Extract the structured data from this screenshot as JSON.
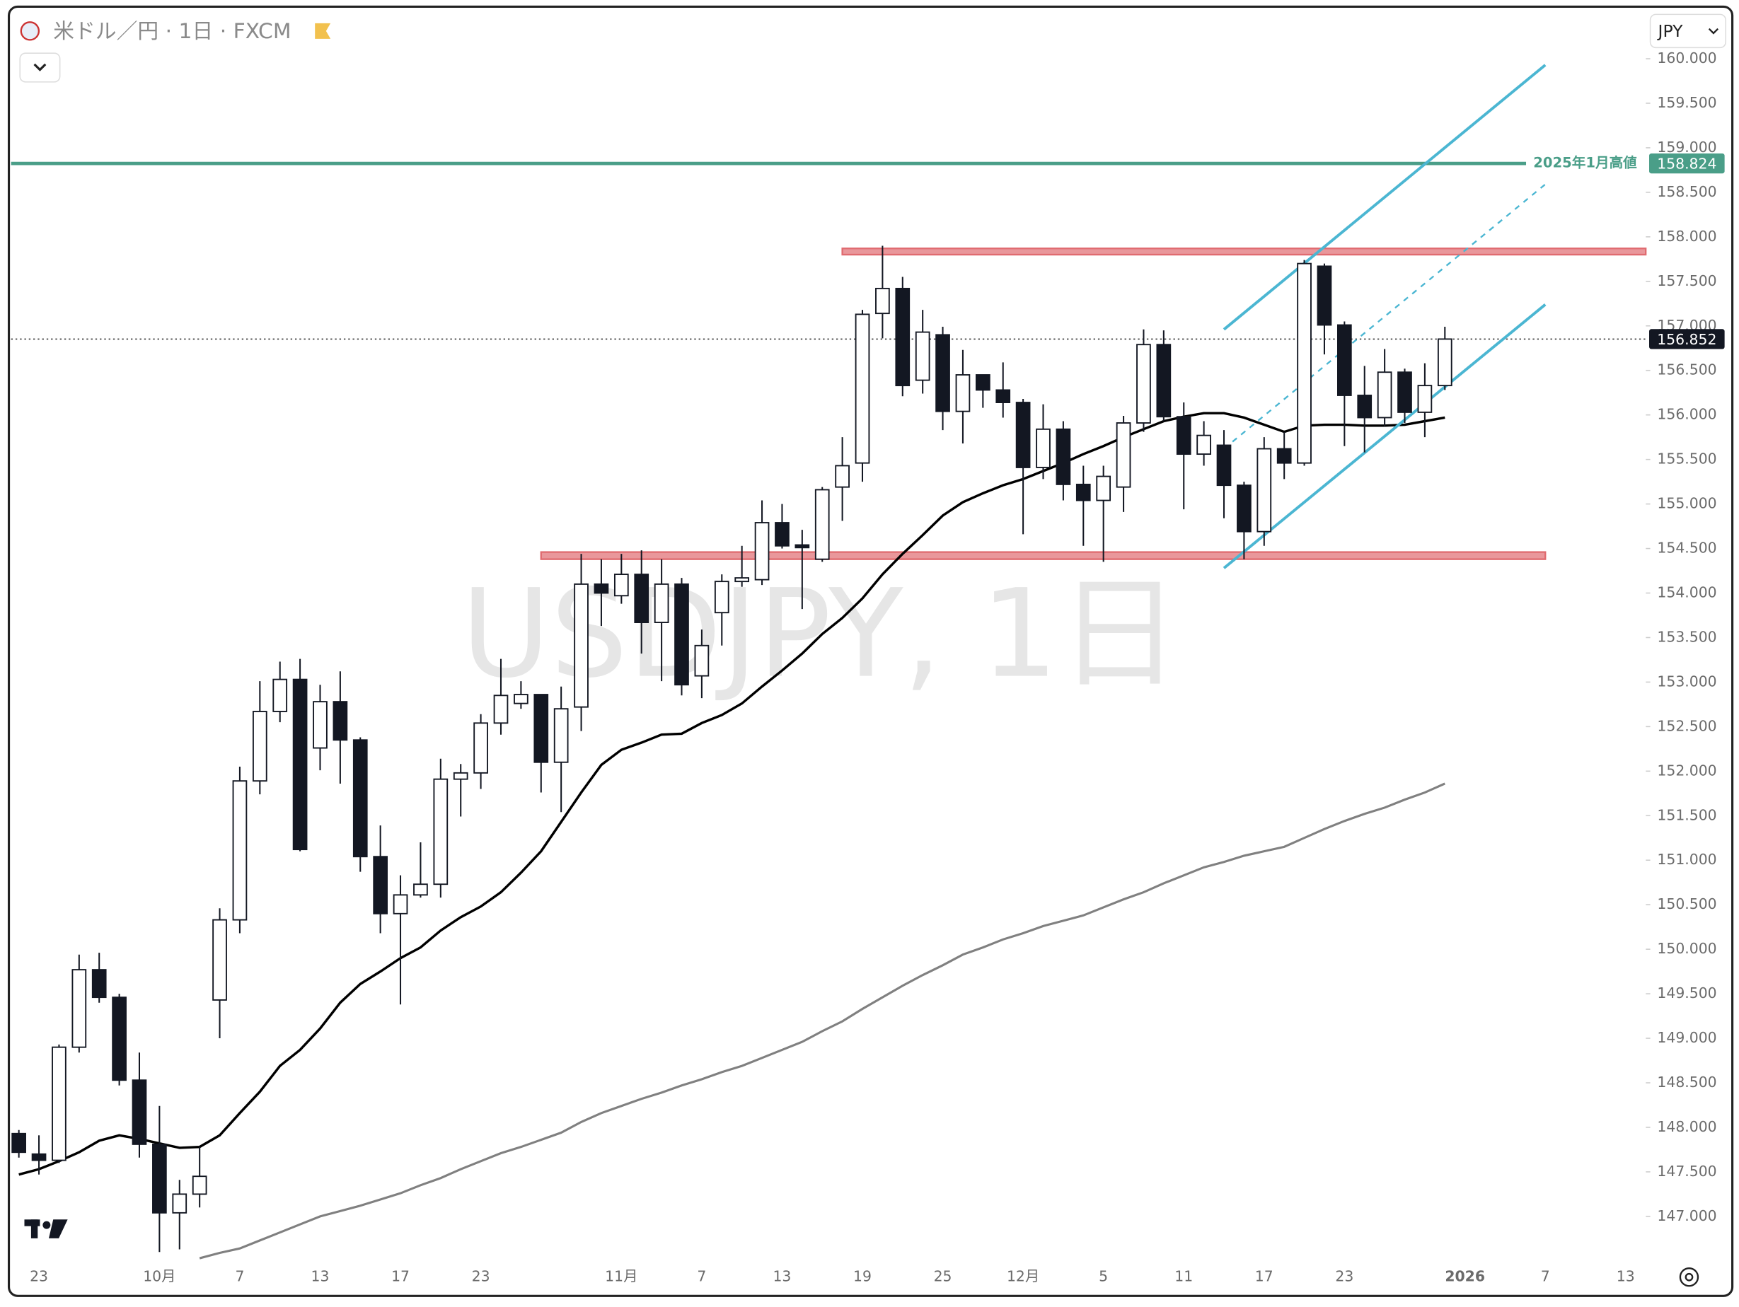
{
  "header": {
    "symbol": "米ドル／円 · 1日 · FXCM",
    "currency": "JPY"
  },
  "chart_data": {
    "type": "candlestick",
    "watermark": "USDJPY, 1日",
    "categories": [
      null,
      "23",
      null,
      null,
      null,
      null,
      null,
      "10月",
      null,
      null,
      null,
      "7",
      null,
      null,
      null,
      "13",
      null,
      null,
      null,
      "17",
      null,
      null,
      null,
      "23",
      null,
      null,
      null,
      null,
      null,
      null,
      "11月",
      null,
      null,
      null,
      "7",
      null,
      null,
      null,
      "13",
      null,
      null,
      null,
      "19",
      null,
      null,
      null,
      "25",
      null,
      null,
      null,
      "12月",
      null,
      null,
      null,
      "5",
      null,
      null,
      null,
      "11",
      null,
      null,
      null,
      "17",
      null,
      null,
      null,
      "23",
      null,
      null,
      null,
      null,
      null,
      "2026",
      null,
      null,
      null,
      "7",
      null,
      null,
      null,
      "13"
    ],
    "open": [
      147.93,
      147.7,
      147.63,
      148.9,
      149.77,
      149.46,
      148.53,
      147.81,
      147.04,
      147.25,
      149.43,
      150.33,
      151.89,
      152.67,
      153.03,
      152.26,
      152.78,
      152.35,
      151.04,
      150.4,
      150.61,
      150.73,
      151.91,
      151.98,
      152.54,
      152.76,
      152.86,
      152.1,
      152.72,
      154.1,
      153.97,
      154.21,
      153.67,
      154.1,
      153.07,
      153.78,
      154.13,
      154.15,
      154.79,
      154.54,
      154.38,
      155.19,
      155.46,
      157.14,
      157.42,
      156.39,
      156.9,
      156.04,
      156.45,
      156.28,
      156.14,
      155.41,
      155.84,
      155.22,
      155.04,
      155.19,
      155.91,
      156.79,
      155.98,
      155.56,
      155.66,
      155.21,
      154.69,
      155.62,
      155.46,
      157.67,
      157.01,
      156.22,
      155.97,
      156.48,
      156.03,
      156.33,
      null,
      null,
      null,
      null,
      null,
      null,
      null,
      null,
      null
    ],
    "high": [
      147.97,
      147.91,
      148.93,
      149.94,
      149.96,
      149.5,
      148.84,
      148.24,
      147.41,
      147.78,
      150.46,
      152.05,
      153.01,
      153.23,
      153.26,
      152.97,
      153.12,
      152.38,
      151.39,
      150.83,
      151.2,
      152.14,
      152.08,
      152.64,
      153.26,
      153.01,
      152.86,
      152.95,
      154.44,
      154.38,
      154.44,
      154.48,
      154.38,
      154.17,
      153.59,
      154.21,
      154.53,
      155.04,
      155.0,
      154.71,
      155.19,
      155.75,
      157.18,
      157.9,
      157.55,
      157.18,
      156.99,
      156.73,
      156.45,
      156.59,
      156.18,
      156.12,
      155.93,
      155.43,
      155.43,
      155.99,
      156.96,
      156.95,
      156.14,
      155.93,
      155.83,
      155.25,
      155.75,
      155.81,
      157.74,
      157.7,
      157.05,
      156.55,
      156.74,
      156.52,
      156.58,
      156.99,
      null,
      null,
      null,
      null,
      null,
      null,
      null,
      null,
      null
    ],
    "low": [
      147.66,
      147.47,
      147.6,
      148.84,
      149.4,
      148.47,
      147.66,
      146.6,
      146.63,
      147.1,
      149.0,
      150.18,
      151.74,
      152.55,
      151.1,
      152.01,
      151.86,
      150.87,
      150.18,
      149.38,
      150.58,
      150.58,
      151.49,
      151.8,
      152.41,
      152.7,
      151.76,
      151.54,
      152.45,
      153.63,
      153.88,
      153.32,
      153.01,
      152.85,
      152.82,
      153.41,
      154.07,
      154.09,
      154.5,
      153.82,
      154.35,
      154.81,
      155.25,
      156.86,
      156.21,
      156.24,
      155.83,
      155.68,
      156.08,
      155.97,
      154.66,
      155.28,
      155.04,
      154.53,
      154.35,
      154.91,
      155.81,
      155.93,
      154.94,
      155.43,
      154.84,
      154.38,
      154.53,
      155.28,
      155.43,
      156.68,
      155.65,
      155.58,
      155.87,
      155.91,
      155.75,
      156.28,
      null,
      null,
      null,
      null,
      null,
      null,
      null,
      null,
      null
    ],
    "close": [
      147.72,
      147.63,
      148.9,
      149.77,
      149.46,
      148.53,
      147.81,
      147.04,
      147.25,
      147.45,
      150.33,
      151.89,
      152.67,
      153.03,
      151.12,
      152.78,
      152.35,
      151.04,
      150.4,
      150.61,
      150.73,
      151.91,
      151.98,
      152.54,
      152.85,
      152.86,
      152.1,
      152.7,
      154.1,
      154.0,
      154.21,
      153.67,
      154.1,
      152.97,
      153.41,
      154.13,
      154.17,
      154.79,
      154.53,
      154.51,
      155.16,
      155.43,
      157.13,
      157.42,
      156.33,
      156.93,
      156.04,
      156.45,
      156.28,
      156.14,
      155.41,
      155.84,
      155.22,
      155.04,
      155.31,
      155.91,
      156.79,
      155.98,
      155.56,
      155.77,
      155.21,
      154.69,
      155.62,
      155.46,
      157.7,
      157.01,
      156.22,
      155.97,
      156.48,
      156.03,
      156.33,
      156.852,
      null,
      null,
      null,
      null,
      null,
      null,
      null,
      null,
      null
    ],
    "up_color": "#ffffff",
    "down_color": "#131722",
    "series": [
      {
        "color": "#000000",
        "values": [
          147.47,
          147.53,
          147.62,
          147.72,
          147.85,
          147.91,
          147.87,
          147.82,
          147.77,
          147.78,
          147.91,
          148.16,
          148.4,
          148.69,
          148.87,
          149.11,
          149.4,
          149.61,
          149.75,
          149.9,
          150.02,
          150.21,
          150.36,
          150.48,
          150.64,
          150.86,
          151.1,
          151.43,
          151.76,
          152.07,
          152.24,
          152.32,
          152.41,
          152.42,
          152.54,
          152.63,
          152.76,
          152.95,
          153.13,
          153.32,
          153.54,
          153.72,
          153.94,
          154.21,
          154.44,
          154.65,
          154.87,
          155.02,
          155.12,
          155.21,
          155.28,
          155.37,
          155.46,
          155.56,
          155.65,
          155.75,
          155.84,
          155.93,
          155.98,
          156.02,
          156.02,
          155.97,
          155.89,
          155.81,
          155.88,
          155.89,
          155.89,
          155.88,
          155.88,
          155.89,
          155.93,
          155.97,
          null,
          null,
          null,
          null,
          null,
          null,
          null,
          null,
          null
        ]
      },
      {
        "color": "#808080",
        "values": [
          null,
          null,
          null,
          null,
          null,
          null,
          null,
          null,
          null,
          146.53,
          146.59,
          146.64,
          146.73,
          146.82,
          146.91,
          147.0,
          147.06,
          147.12,
          147.19,
          147.26,
          147.35,
          147.43,
          147.53,
          147.62,
          147.71,
          147.78,
          147.86,
          147.94,
          148.06,
          148.16,
          148.24,
          148.32,
          148.39,
          148.47,
          148.54,
          148.62,
          148.69,
          148.78,
          148.87,
          148.96,
          149.08,
          149.19,
          149.33,
          149.46,
          149.59,
          149.71,
          149.82,
          149.94,
          150.02,
          150.11,
          150.18,
          150.26,
          150.32,
          150.38,
          150.47,
          150.56,
          150.64,
          150.74,
          150.83,
          150.92,
          150.98,
          151.05,
          151.1,
          151.15,
          151.25,
          151.35,
          151.44,
          151.52,
          151.59,
          151.68,
          151.76,
          151.86,
          null,
          null,
          null,
          null,
          null,
          null,
          null,
          null,
          null
        ]
      }
    ],
    "ylim": [
      146.48,
      160.56
    ],
    "yticks": [
      {
        "value": 147,
        "label": "147.000"
      },
      {
        "value": 147.5,
        "label": "147.500"
      },
      {
        "value": 148,
        "label": "148.000"
      },
      {
        "value": 148.5,
        "label": "148.500"
      },
      {
        "value": 149,
        "label": "149.000"
      },
      {
        "value": 149.5,
        "label": "149.500"
      },
      {
        "value": 150,
        "label": "150.000"
      },
      {
        "value": 150.5,
        "label": "150.500"
      },
      {
        "value": 151,
        "label": "151.000"
      },
      {
        "value": 151.5,
        "label": "151.500"
      },
      {
        "value": 152,
        "label": "152.000"
      },
      {
        "value": 152.5,
        "label": "152.500"
      },
      {
        "value": 153,
        "label": "153.000"
      },
      {
        "value": 153.5,
        "label": "153.500"
      },
      {
        "value": 154,
        "label": "154.000"
      },
      {
        "value": 154.5,
        "label": "154.500"
      },
      {
        "value": 155,
        "label": "155.000"
      },
      {
        "value": 155.5,
        "label": "155.500"
      },
      {
        "value": 156,
        "label": "156.000"
      },
      {
        "value": 156.5,
        "label": "156.500"
      },
      {
        "value": 157,
        "label": "157.000"
      },
      {
        "value": 157.5,
        "label": "157.500"
      },
      {
        "value": 158,
        "label": "158.000"
      },
      {
        "value": 158.5,
        "label": "158.500"
      },
      {
        "value": 159,
        "label": "159.000"
      },
      {
        "value": 159.5,
        "label": "159.500"
      },
      {
        "value": 160,
        "label": "160.000"
      }
    ],
    "grid": false,
    "zones": [
      {
        "from": 41,
        "to": 81,
        "low": 157.8,
        "high": 157.87,
        "color": "#e06b70"
      },
      {
        "from": 26,
        "to": 76,
        "low": 154.38,
        "high": 154.46,
        "color": "#e06b70"
      }
    ],
    "channel": {
      "color": "#4bb6d2",
      "from": 60,
      "to": 76,
      "upper": [
        156.96,
        159.93
      ],
      "middle": [
        155.62,
        158.59
      ],
      "lower": [
        154.28,
        157.24
      ]
    },
    "hlines": [
      {
        "value": 158.824,
        "label": "2025年1月高値",
        "color": "#4a9e88"
      }
    ],
    "last_price": 156.852
  }
}
